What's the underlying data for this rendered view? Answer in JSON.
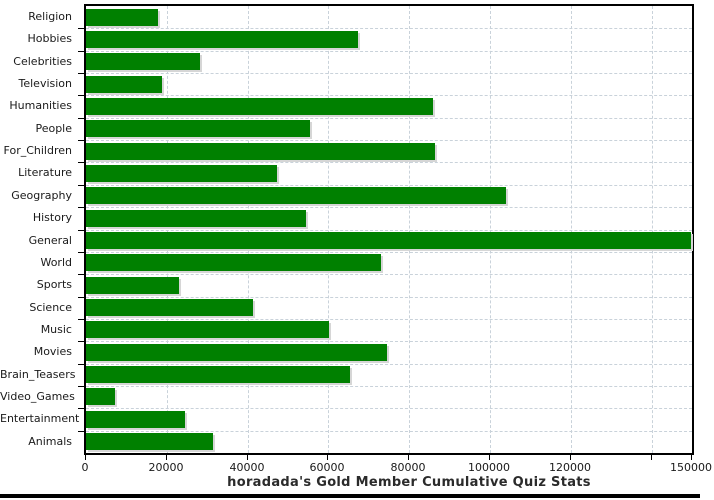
{
  "chart_data": {
    "type": "bar",
    "orientation": "horizontal",
    "title": "horadada's Gold Member Cumulative Quiz Stats",
    "xlabel": "",
    "ylabel": "",
    "categories": [
      "Religion",
      "Hobbies",
      "Celebrities",
      "Television",
      "Humanities",
      "People",
      "For_Children",
      "Literature",
      "Geography",
      "History",
      "General",
      "World",
      "Sports",
      "Science",
      "Music",
      "Movies",
      "Brain_Teasers",
      "Video_Games",
      "Entertainment",
      "Animals"
    ],
    "values": [
      17700,
      67400,
      28300,
      18800,
      86000,
      55400,
      86300,
      47400,
      104000,
      54500,
      149800,
      73000,
      22900,
      41400,
      60100,
      74600,
      65400,
      7300,
      24500,
      31500
    ],
    "xlim": [
      0,
      150000
    ],
    "xticks": [
      {
        "value": 0,
        "label": "0"
      },
      {
        "value": 20000,
        "label": "20000"
      },
      {
        "value": 40000,
        "label": "40000"
      },
      {
        "value": 60000,
        "label": "60000"
      },
      {
        "value": 80000,
        "label": "80000"
      },
      {
        "value": 100000,
        "label": "100000"
      },
      {
        "value": 120000,
        "label": "120000"
      },
      {
        "value": 140000,
        "label": ""
      },
      {
        "value": 150000,
        "label": "150000"
      }
    ],
    "grid": {
      "vertical": "dashed at x ticks",
      "horizontal": "dashed at category boundaries"
    },
    "legend": "none",
    "bar_color": "#008000"
  },
  "colors": {
    "bar": "#008000",
    "bar_shadow": "#d6d6d6",
    "grid": "#c9d2da",
    "axis": "#000000",
    "label_text": "#1a1a1a",
    "title_text": "#2b2b2b",
    "background": "#ffffff",
    "bottom_band": "#000000"
  }
}
